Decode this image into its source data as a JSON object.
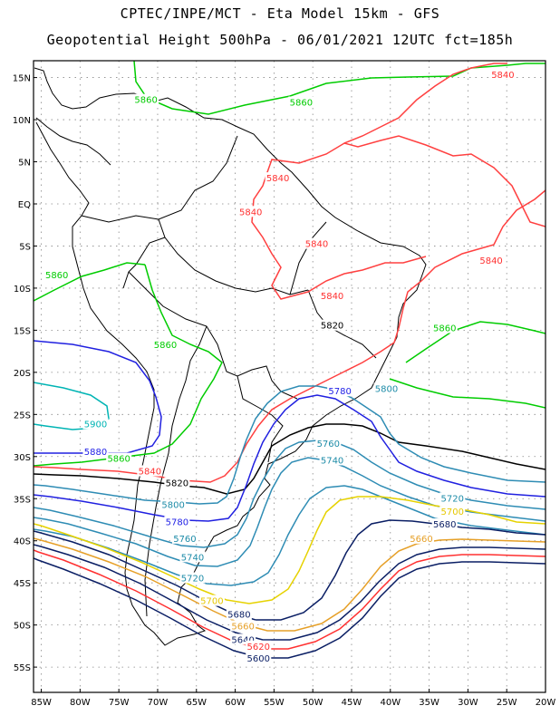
{
  "title_line1": "CPTEC/INPE/MCT -  Eta Model 15km - GFS",
  "title_line2": "Geopotential Height 500hPa - 06/01/2021 12UTC fct=185h",
  "map": {
    "lon_range": [
      -86,
      -20
    ],
    "lat_range": [
      17,
      -58
    ],
    "grid": true,
    "lat_ticks": [
      "15N",
      "10N",
      "5N",
      "EQ",
      "5S",
      "10S",
      "15S",
      "20S",
      "25S",
      "30S",
      "35S",
      "40S",
      "45S",
      "50S",
      "55S"
    ],
    "lon_ticks": [
      "85W",
      "80W",
      "75W",
      "70W",
      "65W",
      "60W",
      "55W",
      "50W",
      "45W",
      "40W",
      "35W",
      "30W",
      "25W",
      "20W"
    ],
    "contour_labels": [
      {
        "text": "5840",
        "color": "#ff3030",
        "lon": -25.5,
        "lat": 15.3
      },
      {
        "text": "5860",
        "color": "#00cc00",
        "lon": -71.5,
        "lat": 12.3
      },
      {
        "text": "5860",
        "color": "#00cc00",
        "lon": -51.5,
        "lat": 12.0
      },
      {
        "text": "5840",
        "color": "#ff3030",
        "lon": -54.5,
        "lat": 3.0
      },
      {
        "text": "5840",
        "color": "#ff3030",
        "lon": -58.0,
        "lat": -1.0
      },
      {
        "text": "5840",
        "color": "#ff3030",
        "lon": -49.5,
        "lat": -4.8
      },
      {
        "text": "5840",
        "color": "#ff3030",
        "lon": -27.0,
        "lat": -6.8
      },
      {
        "text": "5860",
        "color": "#00cc00",
        "lon": -83.0,
        "lat": -8.5
      },
      {
        "text": "5840",
        "color": "#ff3030",
        "lon": -47.5,
        "lat": -11.0
      },
      {
        "text": "5820",
        "color": "#000000",
        "lon": -47.5,
        "lat": -14.5
      },
      {
        "text": "5860",
        "color": "#00cc00",
        "lon": -33.0,
        "lat": -14.8
      },
      {
        "text": "5860",
        "color": "#00cc00",
        "lon": -69.0,
        "lat": -16.8
      },
      {
        "text": "5780",
        "color": "#1e1ee6",
        "lon": -46.5,
        "lat": -22.3
      },
      {
        "text": "5800",
        "color": "#1e8ca8",
        "lon": -40.5,
        "lat": -22.0
      },
      {
        "text": "5900",
        "color": "#00b4b4",
        "lon": -78.0,
        "lat": -26.2
      },
      {
        "text": "5760",
        "color": "#1e8ca8",
        "lon": -48.0,
        "lat": -28.5
      },
      {
        "text": "5880",
        "color": "#1e1ee6",
        "lon": -78.0,
        "lat": -29.5
      },
      {
        "text": "5860",
        "color": "#00cc00",
        "lon": -75.0,
        "lat": -30.3
      },
      {
        "text": "5740",
        "color": "#1e8ca8",
        "lon": -47.5,
        "lat": -30.5
      },
      {
        "text": "5840",
        "color": "#ff3030",
        "lon": -71.0,
        "lat": -31.8
      },
      {
        "text": "5820",
        "color": "#000000",
        "lon": -67.5,
        "lat": -33.2
      },
      {
        "text": "5720",
        "color": "#1e8ca8",
        "lon": -32.0,
        "lat": -35.0
      },
      {
        "text": "5800",
        "color": "#1e8ca8",
        "lon": -68.0,
        "lat": -35.8
      },
      {
        "text": "5700",
        "color": "#e6c800",
        "lon": -32.0,
        "lat": -36.6
      },
      {
        "text": "5780",
        "color": "#1e1ee6",
        "lon": -67.5,
        "lat": -37.8
      },
      {
        "text": "5680",
        "color": "#0a1e64",
        "lon": -33.0,
        "lat": -38.1
      },
      {
        "text": "5760",
        "color": "#1e8ca8",
        "lon": -66.5,
        "lat": -39.8
      },
      {
        "text": "5660",
        "color": "#e6a028",
        "lon": -36.0,
        "lat": -39.8
      },
      {
        "text": "5740",
        "color": "#1e8ca8",
        "lon": -65.5,
        "lat": -42.0
      },
      {
        "text": "5720",
        "color": "#1e8ca8",
        "lon": -65.5,
        "lat": -44.5
      },
      {
        "text": "5700",
        "color": "#e6c800",
        "lon": -63.0,
        "lat": -47.2
      },
      {
        "text": "5680",
        "color": "#0a1e64",
        "lon": -59.5,
        "lat": -48.8
      },
      {
        "text": "5660",
        "color": "#e6a028",
        "lon": -59.0,
        "lat": -50.2
      },
      {
        "text": "5640",
        "color": "#0a1e64",
        "lon": -59.0,
        "lat": -51.8
      },
      {
        "text": "5620",
        "color": "#ff3030",
        "lon": -57.0,
        "lat": -52.6
      },
      {
        "text": "5600",
        "color": "#0a1e64",
        "lon": -57.0,
        "lat": -54.0
      }
    ]
  }
}
